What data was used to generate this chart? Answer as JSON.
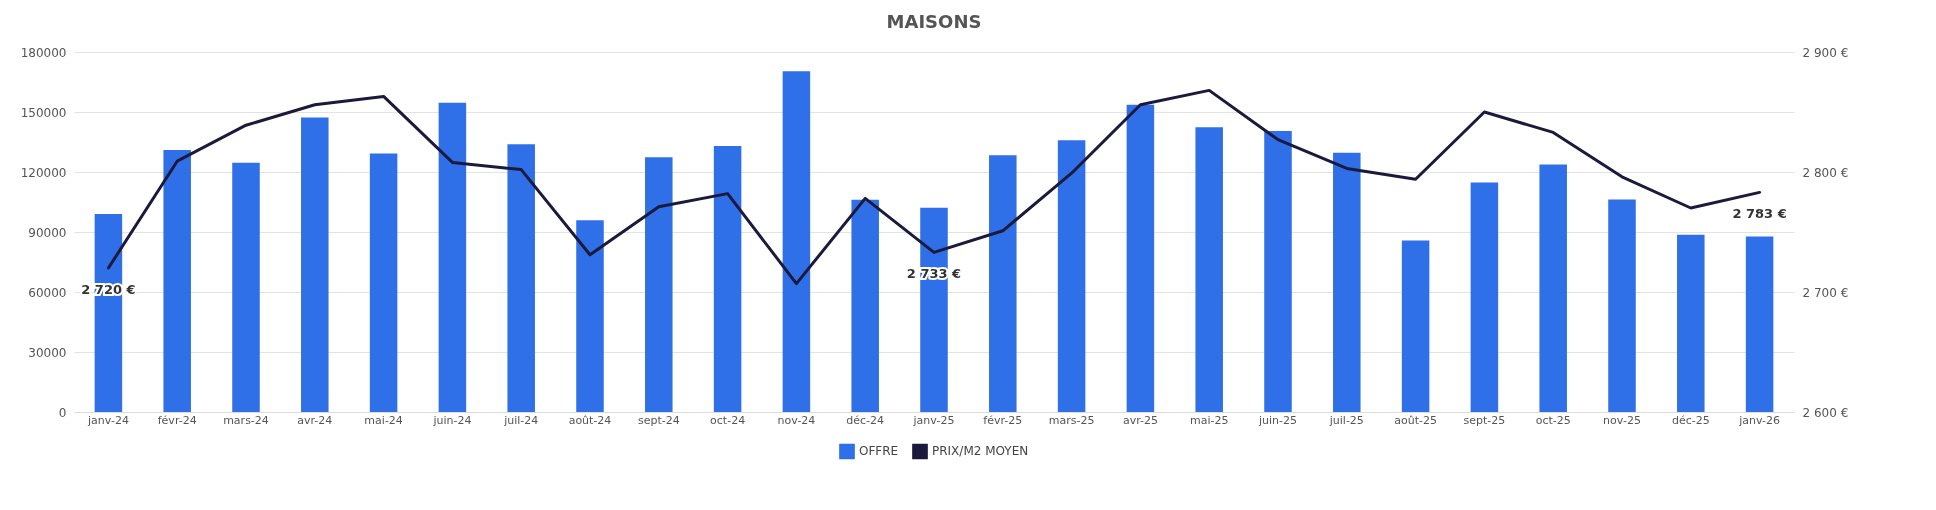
{
  "chart_data": {
    "type": "bar",
    "title": "MAISONS",
    "categories": [
      "janv-24",
      "févr-24",
      "mars-24",
      "avr-24",
      "mai-24",
      "juin-24",
      "juil-24",
      "août-24",
      "sept-24",
      "oct-24",
      "nov-24",
      "déc-24",
      "janv-25",
      "févr-25",
      "mars-25",
      "avr-25",
      "mai-25",
      "juin-25",
      "juil-25",
      "août-25",
      "sept-25",
      "oct-25",
      "nov-25",
      "déc-25",
      "janv-26"
    ],
    "series": [
      {
        "name": "OFFRE",
        "color": "#2f6fe8",
        "values": [
          99000,
          131000,
          124600,
          147200,
          129300,
          154600,
          133900,
          95900,
          127400,
          133000,
          170400,
          106100,
          102100,
          128400,
          135900,
          153600,
          142400,
          140500,
          129600,
          85800,
          114700,
          123700,
          106300,
          88600,
          87700
        ]
      },
      {
        "name": "PRIX/M2 MOYEN",
        "type": "line",
        "axis": "y2",
        "color": "#1b1a3d",
        "values": [
          2720,
          2809,
          2839,
          2856,
          2863,
          2808,
          2802,
          2731,
          2771,
          2782,
          2707,
          2778,
          2733,
          2751,
          2799,
          2856,
          2868,
          2827,
          2803,
          2794,
          2850,
          2833,
          2796,
          2770,
          2783
        ],
        "value_labels": [
          "2 720 €",
          null,
          null,
          null,
          null,
          null,
          null,
          null,
          null,
          null,
          null,
          null,
          "2 733 €",
          null,
          null,
          null,
          null,
          null,
          null,
          null,
          null,
          null,
          null,
          null,
          "2 783 €"
        ]
      }
    ],
    "ylim": [
      0,
      180000
    ],
    "yticks": [
      0,
      30000,
      60000,
      90000,
      120000,
      150000,
      180000
    ],
    "y2lim": [
      2600,
      2900
    ],
    "y2ticks": [
      {
        "value": 2600,
        "label": "2 600 €"
      },
      {
        "value": 2700,
        "label": "2 700 €"
      },
      {
        "value": 2800,
        "label": "2 800 €"
      },
      {
        "value": 2900,
        "label": "2 900 €"
      }
    ],
    "grid": "y",
    "legend": "bottom"
  }
}
